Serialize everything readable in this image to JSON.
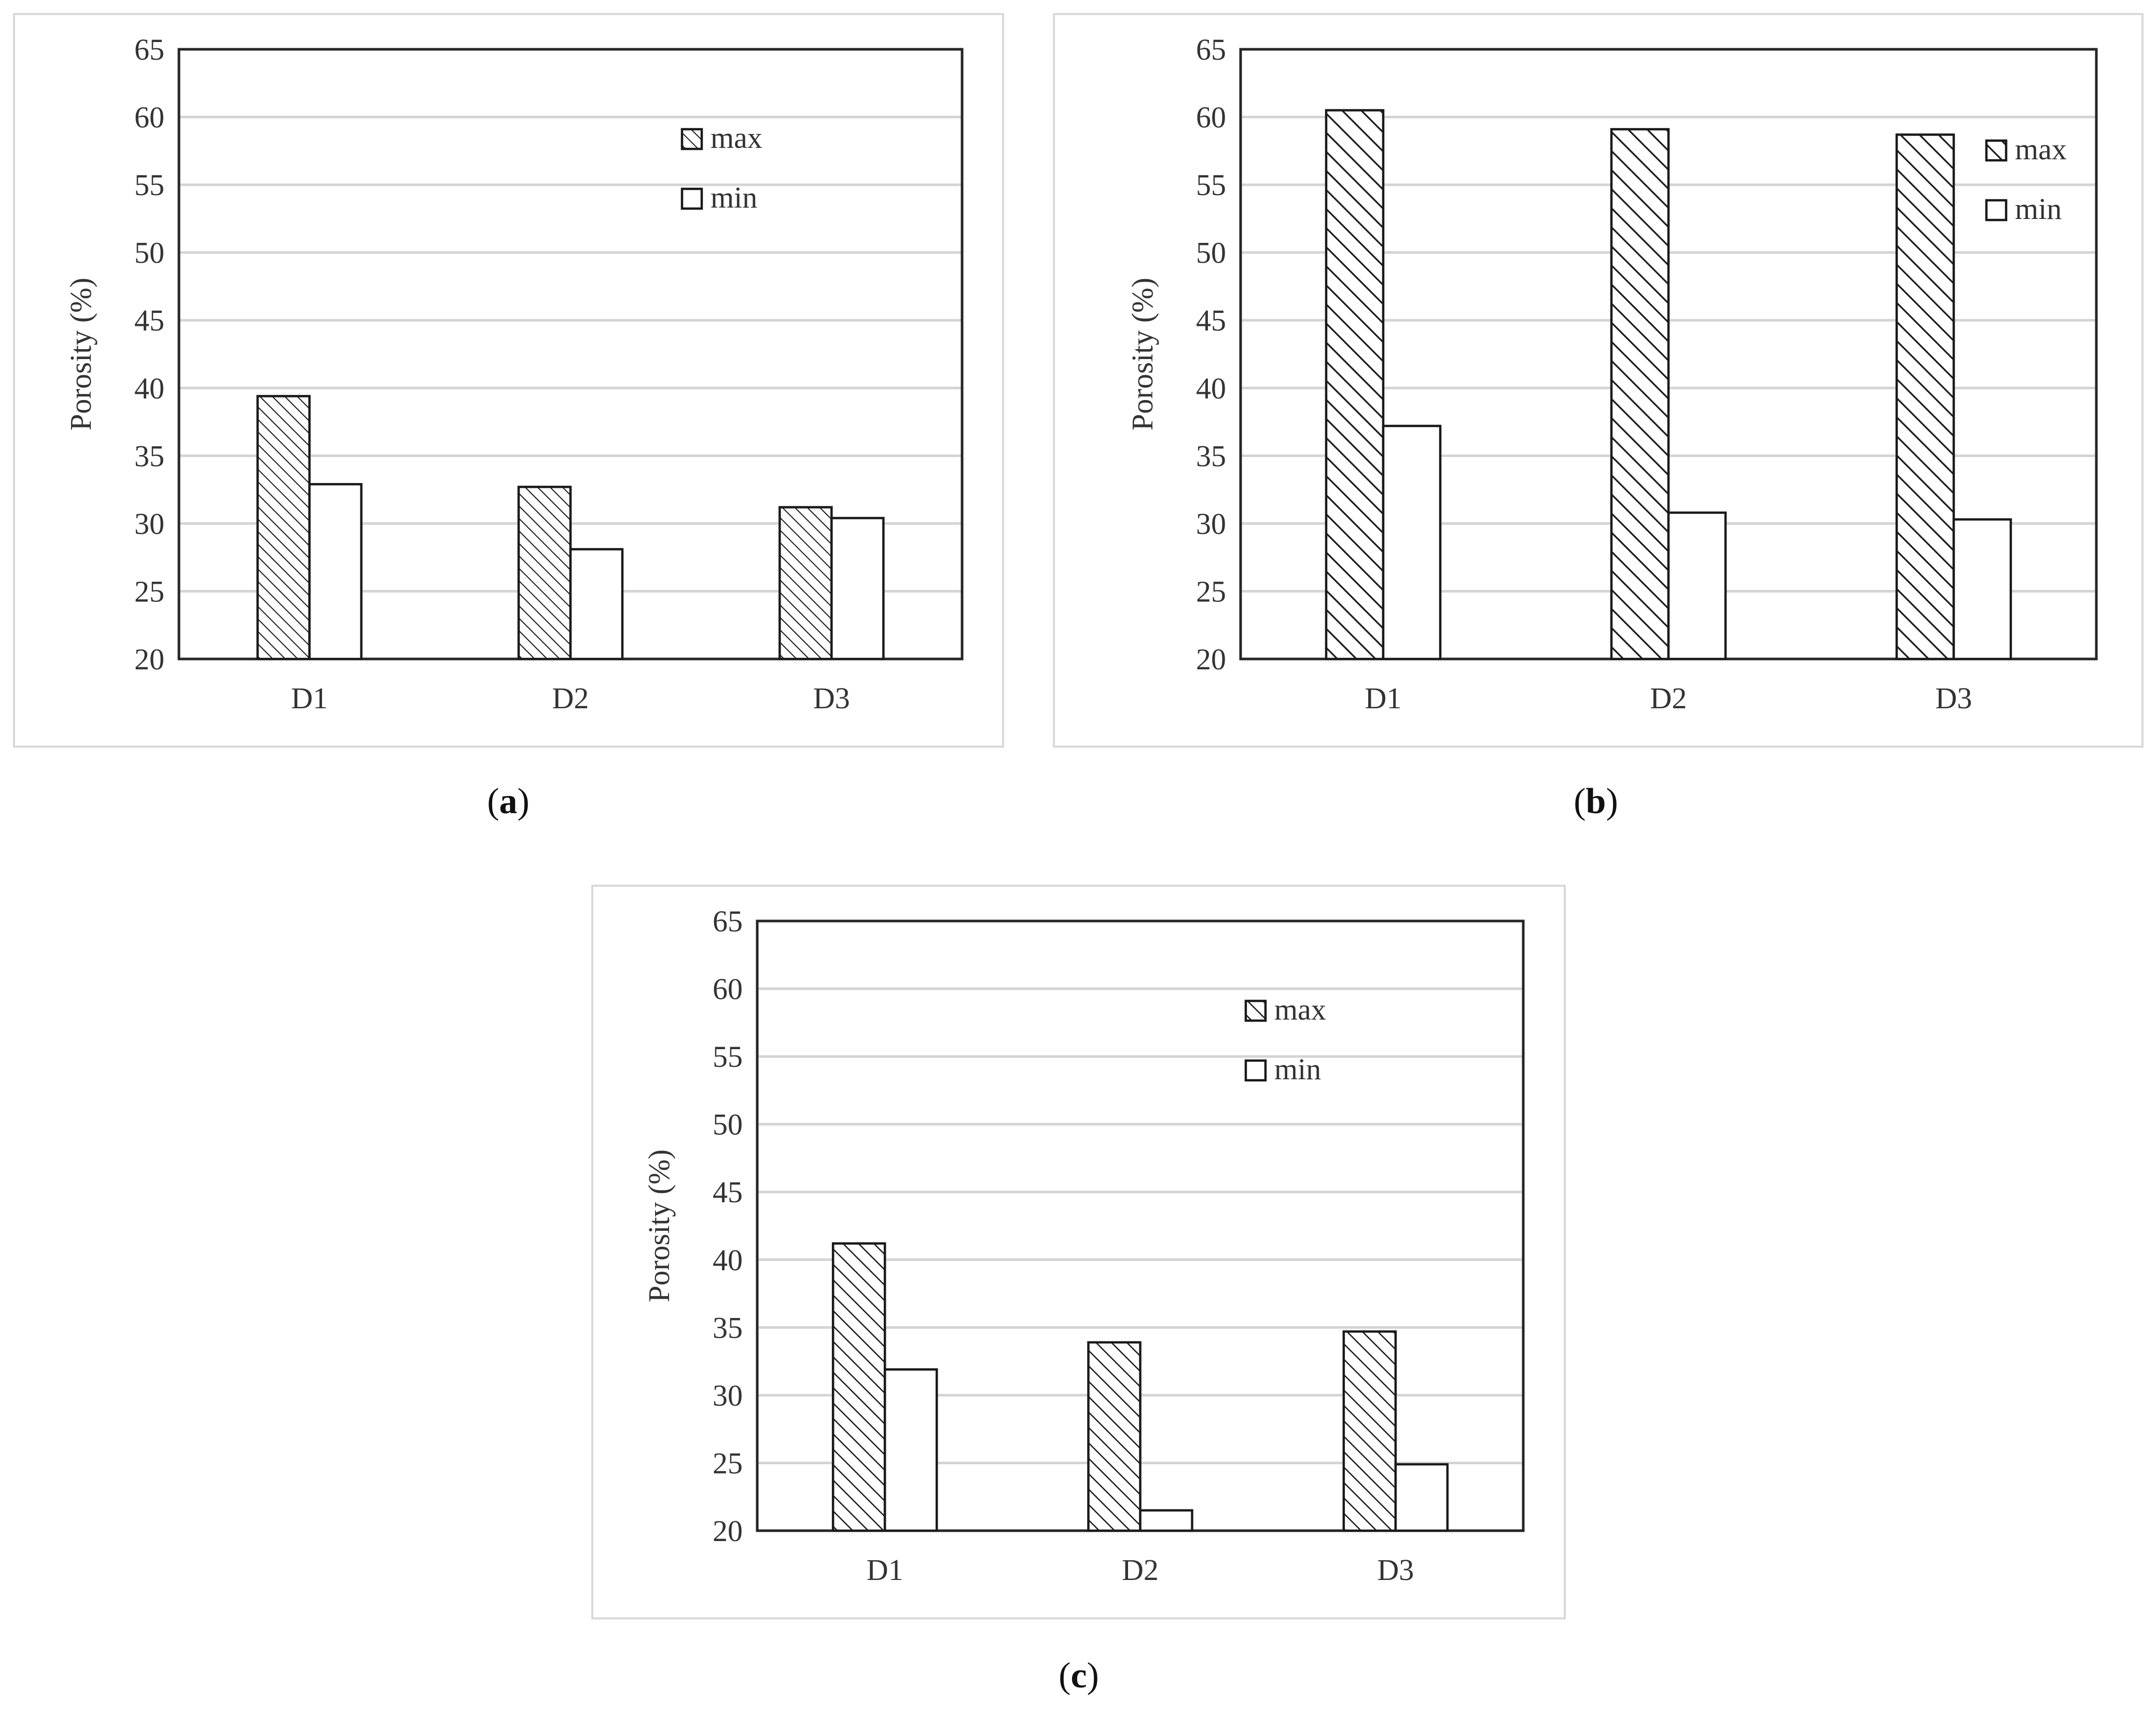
{
  "panel_labels": [
    {
      "open": "(",
      "letter": "a",
      "close": ")"
    },
    {
      "open": "(",
      "letter": "b",
      "close": ")"
    },
    {
      "open": "(",
      "letter": "c",
      "close": ")"
    }
  ],
  "chart_data": [
    {
      "type": "bar",
      "panel": "a",
      "categories": [
        "D1",
        "D2",
        "D3"
      ],
      "series": [
        {
          "name": "max",
          "values": [
            39.4,
            32.7,
            31.2
          ],
          "pattern": "hatch-dense"
        },
        {
          "name": "min",
          "values": [
            32.9,
            28.1,
            30.4
          ],
          "pattern": "none"
        }
      ],
      "ylabel": "Porosity (%)",
      "xlabel": "",
      "ylim": [
        20,
        65
      ],
      "yticks": [
        20,
        25,
        30,
        35,
        40,
        45,
        50,
        55,
        60,
        65
      ],
      "grid": true,
      "legend_position": "top-right"
    },
    {
      "type": "bar",
      "panel": "b",
      "categories": [
        "D1",
        "D2",
        "D3"
      ],
      "series": [
        {
          "name": "max",
          "values": [
            60.5,
            59.1,
            58.7
          ],
          "pattern": "hatch-bold"
        },
        {
          "name": "min",
          "values": [
            37.2,
            30.8,
            30.3
          ],
          "pattern": "none"
        }
      ],
      "ylabel": "Porosity (%)",
      "xlabel": "",
      "ylim": [
        20,
        65
      ],
      "yticks": [
        20,
        25,
        30,
        35,
        40,
        45,
        50,
        55,
        60,
        65
      ],
      "grid": true,
      "legend_position": "right"
    },
    {
      "type": "bar",
      "panel": "c",
      "categories": [
        "D1",
        "D2",
        "D3"
      ],
      "series": [
        {
          "name": "max",
          "values": [
            41.2,
            33.9,
            34.7
          ],
          "pattern": "hatch-medium"
        },
        {
          "name": "min",
          "values": [
            31.9,
            21.5,
            24.9
          ],
          "pattern": "none"
        }
      ],
      "ylabel": "Porosity (%)",
      "xlabel": "",
      "ylim": [
        20,
        65
      ],
      "yticks": [
        20,
        25,
        30,
        35,
        40,
        45,
        50,
        55,
        60,
        65
      ],
      "grid": true,
      "legend_position": "top-right"
    }
  ]
}
